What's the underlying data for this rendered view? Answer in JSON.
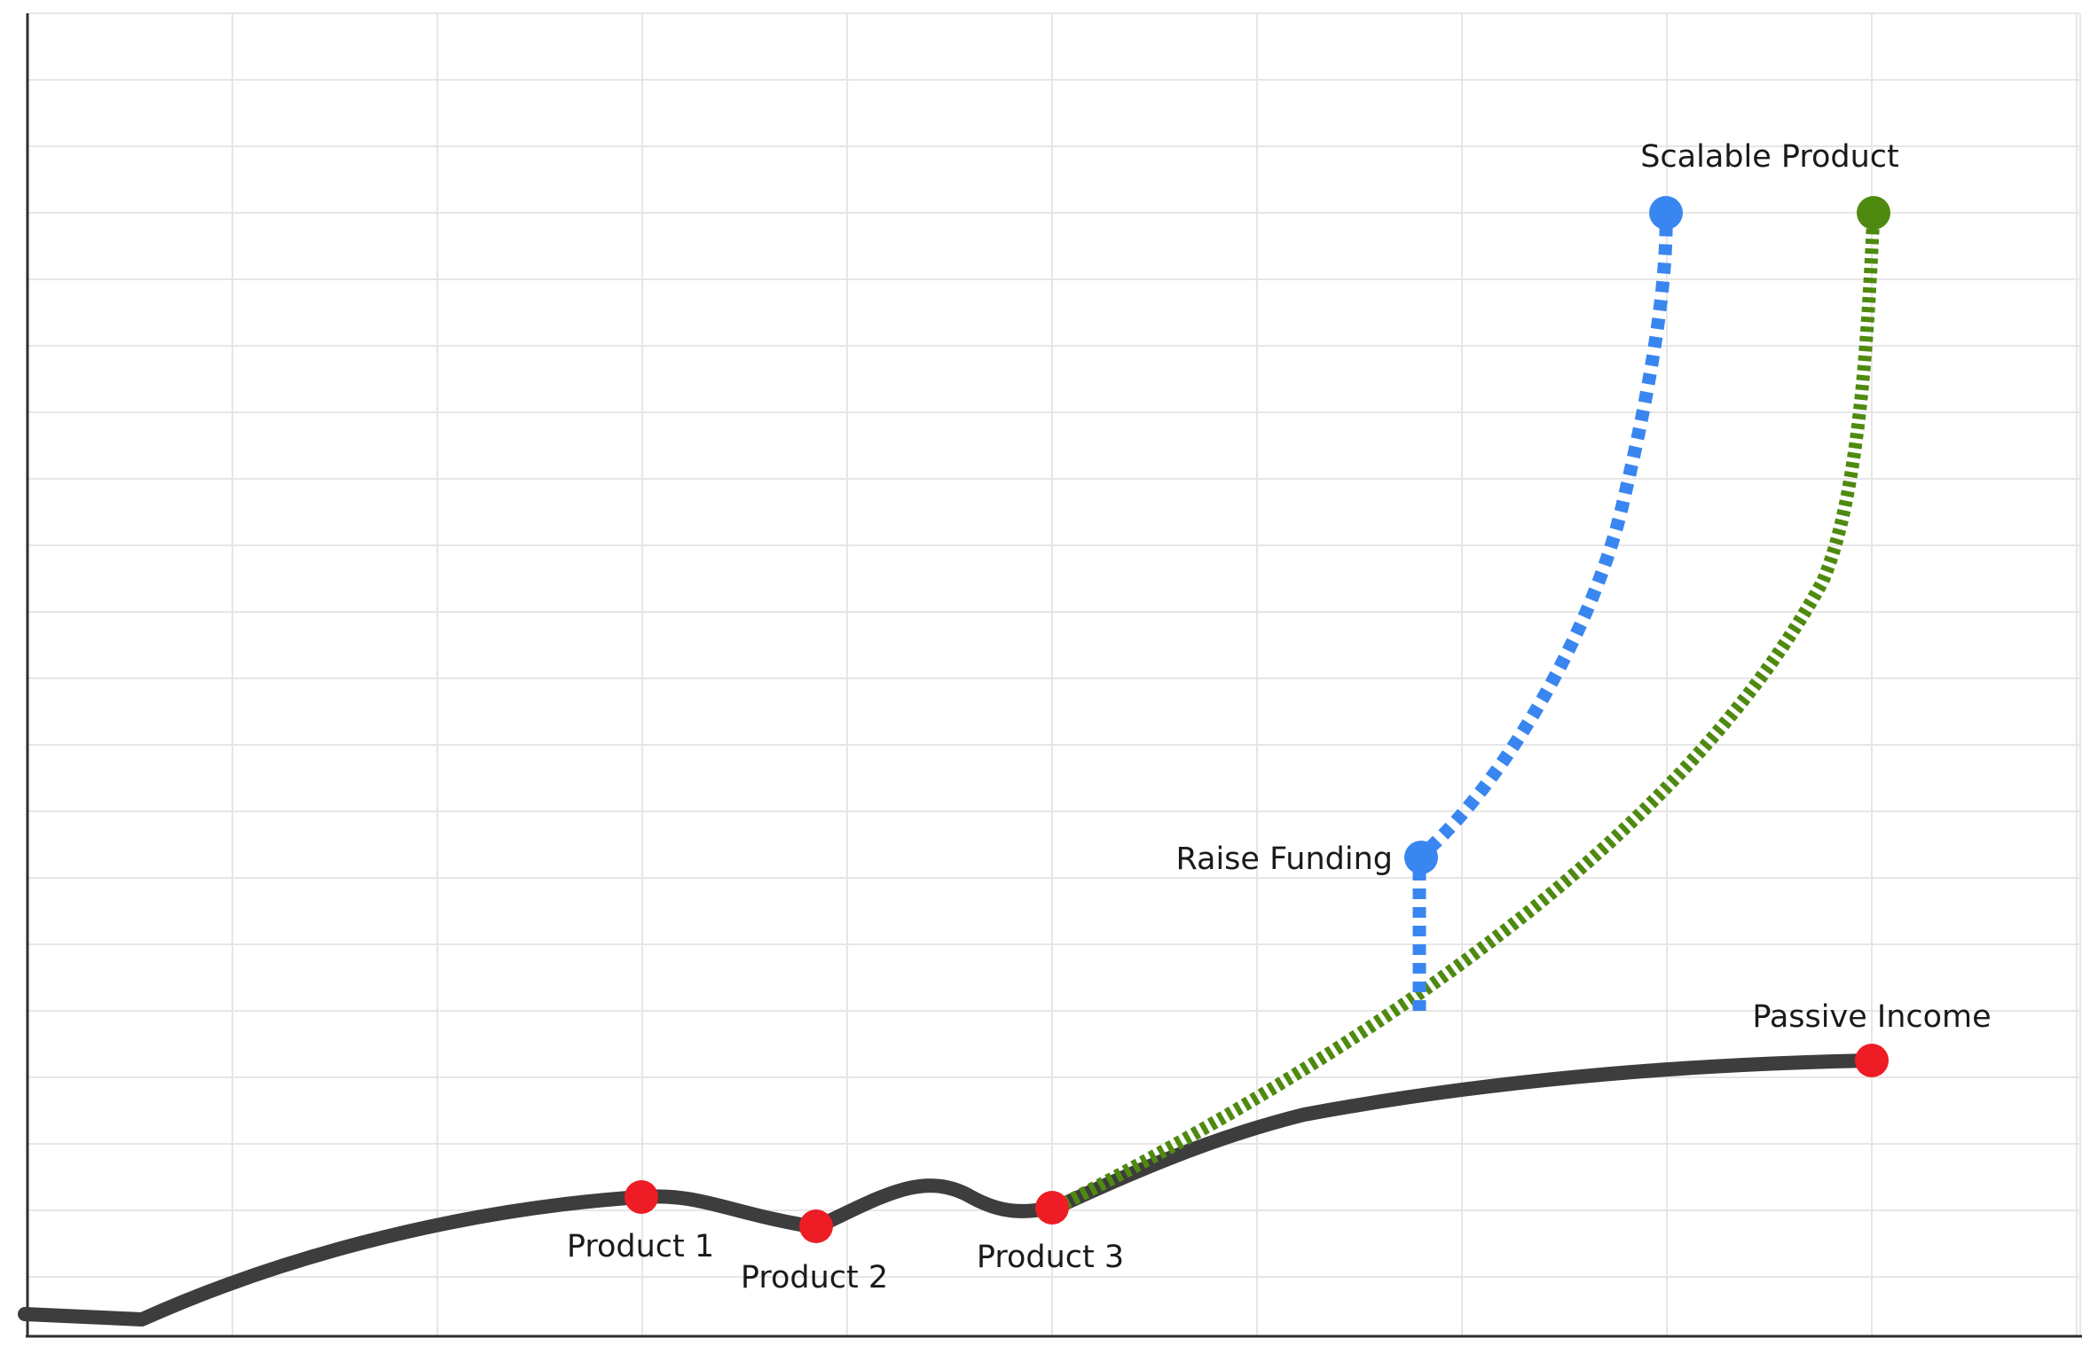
{
  "colors": {
    "background": "#ffffff",
    "grid": "#e6e6e6",
    "axis": "#2f2f2f",
    "main_path": "#3d3d3d",
    "milestone": "#ee1c24",
    "funding_path": "#3a86f0",
    "bootstrap_path": "#4f8a10"
  },
  "labels": {
    "product_1": "Product 1",
    "product_2": "Product 2",
    "product_3": "Product 3",
    "passive_income": "Passive Income",
    "raise_funding": "Raise Funding",
    "scalable_product": "Scalable Product"
  }
}
